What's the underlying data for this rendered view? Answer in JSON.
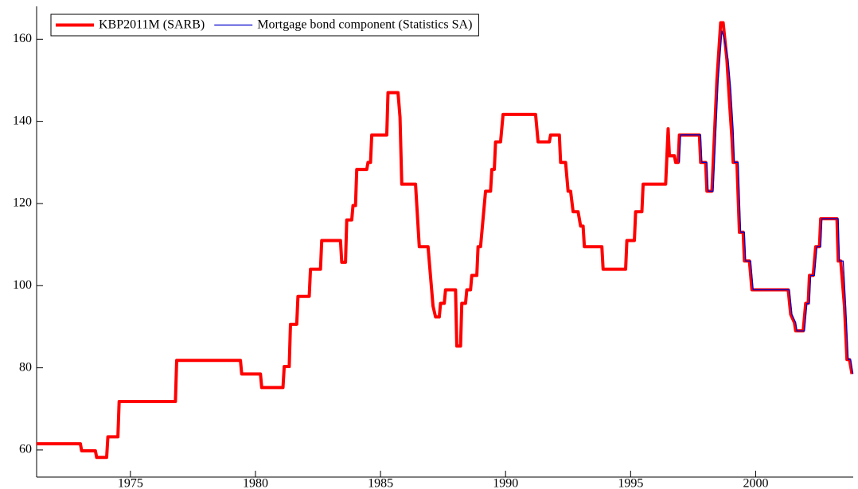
{
  "chart_data": {
    "type": "line",
    "xlim": [
      1971.25,
      2003.9
    ],
    "ylim": [
      53.4,
      168
    ],
    "xticks": [
      1975,
      1980,
      1985,
      1990,
      1995,
      2000
    ],
    "yticks": [
      60,
      80,
      100,
      120,
      140,
      160
    ],
    "grid": false,
    "legend": "top-left",
    "series": [
      {
        "name": "KBP2011M (SARB)",
        "color": "#ff0000",
        "x": [
          1971.25,
          1973.0,
          1973.05,
          1973.6,
          1973.65,
          1974.05,
          1974.1,
          1974.5,
          1974.55,
          1976.8,
          1976.85,
          1979.4,
          1979.45,
          1980.2,
          1980.25,
          1981.1,
          1981.15,
          1981.35,
          1981.4,
          1981.65,
          1981.7,
          1982.15,
          1982.2,
          1982.6,
          1982.65,
          1983.4,
          1983.45,
          1983.6,
          1983.65,
          1983.85,
          1983.9,
          1984.0,
          1984.05,
          1984.45,
          1984.5,
          1984.6,
          1984.65,
          1985.25,
          1985.3,
          1985.7,
          1985.78,
          1985.85,
          1986.4,
          1986.55,
          1986.9,
          1987.1,
          1987.2,
          1987.35,
          1987.4,
          1987.55,
          1987.6,
          1988.0,
          1988.05,
          1988.2,
          1988.25,
          1988.4,
          1988.45,
          1988.6,
          1988.65,
          1988.85,
          1988.9,
          1989.0,
          1989.2,
          1989.4,
          1989.45,
          1989.55,
          1989.6,
          1989.8,
          1989.9,
          1991.2,
          1991.3,
          1991.75,
          1991.8,
          1992.15,
          1992.2,
          1992.4,
          1992.5,
          1992.6,
          1992.7,
          1992.9,
          1993.0,
          1993.1,
          1993.15,
          1993.85,
          1993.9,
          1994.8,
          1994.85,
          1995.15,
          1995.2,
          1995.45,
          1995.5,
          1996.4,
          1996.5,
          1996.55,
          1996.75,
          1996.8,
          1996.9,
          1996.95,
          1997.75,
          1997.8,
          1998.0,
          1998.05,
          1998.25,
          1998.45,
          1998.6,
          1998.7,
          1998.85,
          1998.95,
          1999.05,
          1999.1,
          1999.25,
          1999.35,
          1999.5,
          1999.55,
          1999.75,
          1999.85,
          2001.3,
          2001.4,
          2001.55,
          2001.6,
          2001.9,
          2002.0,
          2002.1,
          2002.15,
          2002.3,
          2002.4,
          2002.55,
          2002.6,
          2003.25,
          2003.3,
          2003.4,
          2003.55,
          2003.65,
          2003.75,
          2003.85
        ],
        "values": [
          61.5,
          61.5,
          59.8,
          59.8,
          58.2,
          58.2,
          63.2,
          63.2,
          71.8,
          71.8,
          81.8,
          81.8,
          78.5,
          78.5,
          75.2,
          75.2,
          80.3,
          80.3,
          90.6,
          90.6,
          97.4,
          97.4,
          104,
          104,
          111,
          111,
          105.7,
          105.7,
          116,
          116,
          119.5,
          119.5,
          128.3,
          128.3,
          130,
          130,
          136.7,
          136.7,
          147,
          147,
          141,
          124.7,
          124.7,
          109.5,
          109.5,
          95,
          92.4,
          92.4,
          95.7,
          95.7,
          99,
          99,
          85.3,
          85.3,
          95.7,
          95.7,
          99,
          99,
          102.5,
          102.5,
          109.5,
          109.5,
          123,
          123,
          128.3,
          128.3,
          135,
          135,
          141.7,
          141.7,
          135,
          135,
          136.7,
          136.7,
          130,
          130,
          123,
          123,
          118,
          118,
          114.5,
          114.5,
          109.5,
          109.5,
          104,
          104,
          111,
          111,
          118,
          118,
          124.7,
          124.7,
          138.2,
          131.6,
          131.6,
          130,
          130,
          136.7,
          136.7,
          130,
          130,
          123,
          123,
          150,
          164,
          164,
          155,
          145,
          136,
          130,
          130,
          113,
          113,
          106,
          106,
          99,
          99,
          93,
          91,
          89,
          89,
          95.7,
          95.7,
          102.5,
          102.5,
          109.5,
          109.5,
          116.3,
          116.3,
          106,
          106,
          95,
          82,
          82,
          78.5
        ]
      },
      {
        "name": "Mortgage bond component (Statistics SA)",
        "color": "#0000cc",
        "x": [
          1996.95,
          1997.0,
          1997.8,
          1997.85,
          1998.05,
          1998.1,
          1998.3,
          1998.5,
          1998.65,
          1998.75,
          1998.9,
          1999.0,
          1999.1,
          1999.15,
          1999.3,
          1999.4,
          1999.55,
          1999.6,
          1999.8,
          1999.9,
          2001.35,
          2001.45,
          2001.6,
          2001.65,
          2001.95,
          2002.05,
          2002.15,
          2002.2,
          2002.35,
          2002.45,
          2002.6,
          2002.65,
          2003.3,
          2003.35,
          2003.5,
          2003.6,
          2003.7,
          2003.8,
          2003.88
        ],
        "values": [
          130,
          136.7,
          136.7,
          130,
          130,
          123,
          123,
          150,
          162,
          160,
          155,
          148,
          138,
          130,
          130,
          113,
          113,
          106,
          106,
          99,
          99,
          93,
          91,
          89,
          89,
          95.7,
          95.7,
          102.5,
          102.5,
          109.5,
          109.5,
          116.3,
          116.3,
          106,
          106,
          95,
          82,
          82,
          78.5
        ]
      }
    ]
  }
}
